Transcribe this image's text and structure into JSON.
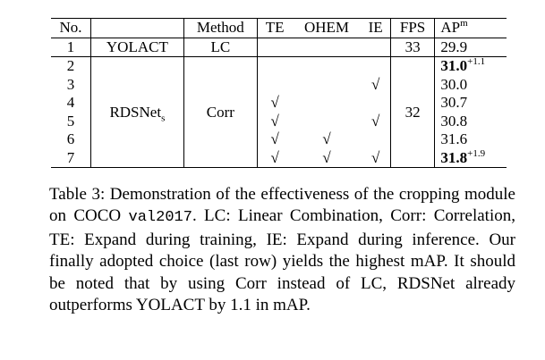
{
  "table": {
    "header": {
      "no": "No.",
      "method": "Method",
      "te": "TE",
      "ohem": "OHEM",
      "ie": "IE",
      "fps": "FPS",
      "ap": "AP",
      "ap_sup": "m"
    },
    "baseline": {
      "no": "1",
      "name": "YOLACT",
      "method": "LC",
      "fps": "33",
      "ap": "29.9"
    },
    "group": {
      "name": "RDSNet",
      "name_sub": "s",
      "method": "Corr",
      "fps": "32",
      "rows": [
        {
          "no": "2",
          "ap": "31.0",
          "ap_sup": "+1.1",
          "bold": true
        },
        {
          "no": "3",
          "ie": "√",
          "ap": "30.0"
        },
        {
          "no": "4",
          "te": "√",
          "ap": "30.7"
        },
        {
          "no": "5",
          "te": "√",
          "ie": "√",
          "ap": "30.8"
        },
        {
          "no": "6",
          "te": "√",
          "ohem": "√",
          "ap": "31.6"
        },
        {
          "no": "7",
          "te": "√",
          "ohem": "√",
          "ie": "√",
          "ap": "31.8",
          "ap_sup": "+1.9",
          "bold": true
        }
      ]
    }
  },
  "caption": {
    "before": "Table 3: Demonstration of the effectiveness of the cropping module on COCO ",
    "code": "val2017",
    "after": ". LC: Linear Combination, Corr: Correlation, TE: Expand during training, IE: Expand during inference. Our finally adopted choice (last row) yields the highest mAP. It should be noted that by using Corr instead of LC, RDSNet already outperforms YOLACT by 1.1 in mAP."
  }
}
